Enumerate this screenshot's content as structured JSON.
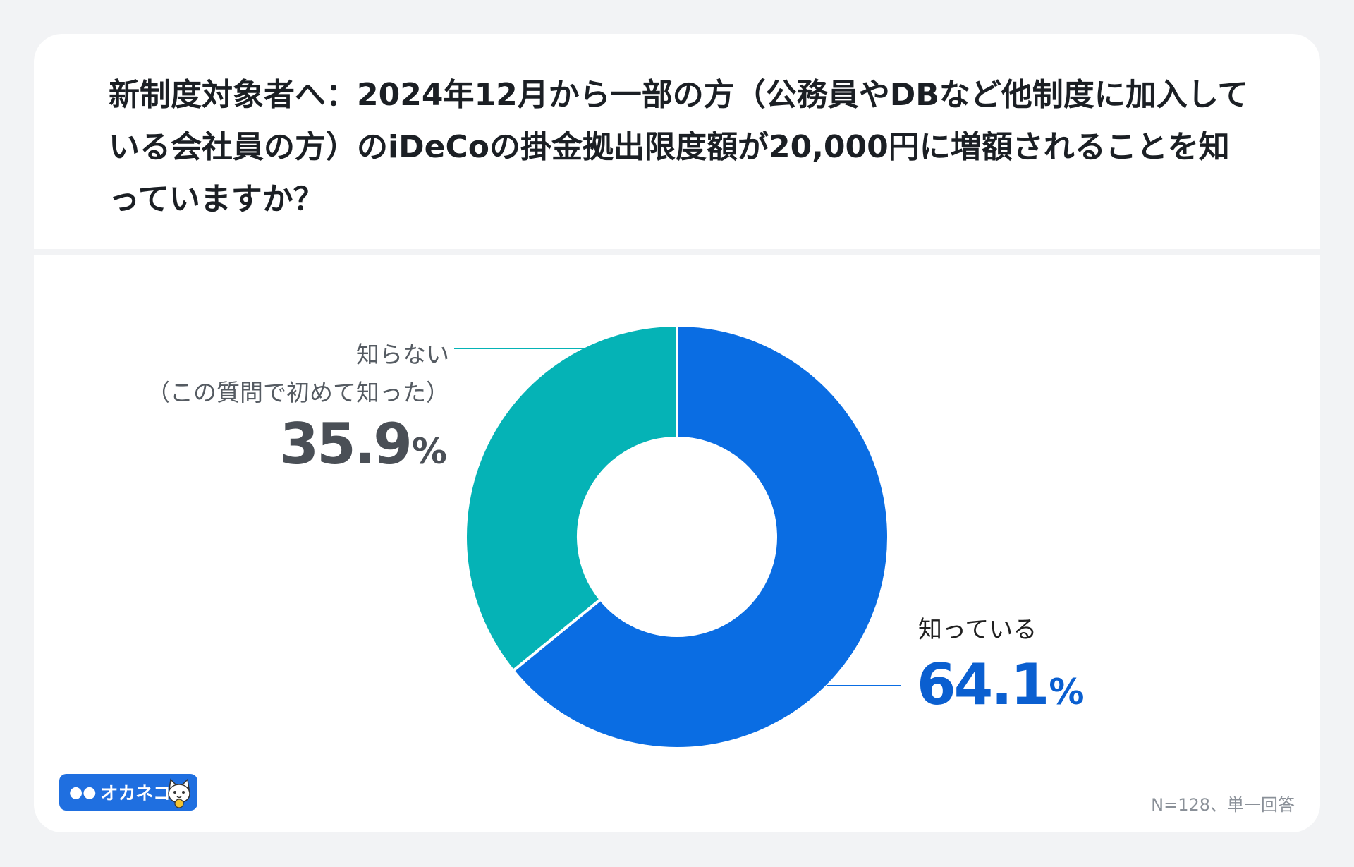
{
  "question": "新制度対象者へ：2024年12月から一部の方（公務員やDBなど他制度に加入している会社員の方）のiDeCoの掛金拠出限度額が20,000円に増額されることを知っていますか？",
  "note": "N=128、単一回答",
  "logo": {
    "text": "オカネコ",
    "icon": "cat-mascot-icon"
  },
  "chart_data": {
    "type": "pie",
    "donut": true,
    "slices": [
      {
        "label": "知っている",
        "value": 64.1,
        "value_text": "64.1",
        "unit": "%",
        "color": "#0a6de3",
        "label_color": "#1f1f1f",
        "value_color": "#0a5fd0"
      },
      {
        "label": "知らない",
        "sublabel": "（この質問で初めて知った）",
        "value": 35.9,
        "value_text": "35.9",
        "unit": "%",
        "color": "#05b3b6",
        "label_color": "#555b62",
        "value_color": "#4a4f56"
      }
    ]
  }
}
